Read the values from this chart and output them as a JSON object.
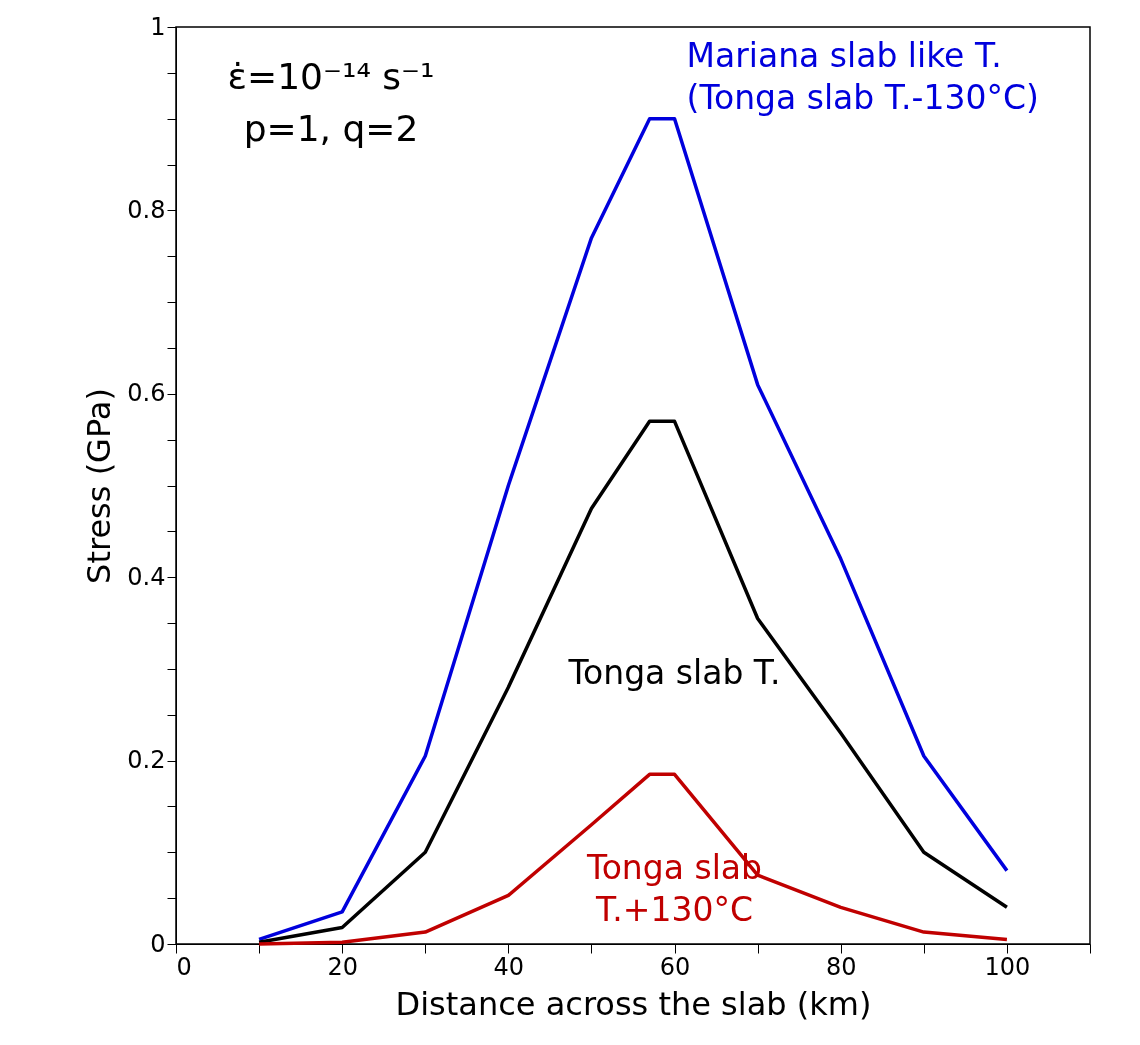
{
  "chart_data": {
    "type": "line",
    "xlabel": "Distance across the slab (km)",
    "ylabel": "Stress (GPa)",
    "x": [
      10,
      20,
      30,
      40,
      50,
      57,
      60,
      70,
      80,
      90,
      100
    ],
    "series": [
      {
        "name": "Mariana slab like T.\n(Tonga slab T.-130°C)",
        "color": "#0000dd",
        "values": [
          0.005,
          0.035,
          0.205,
          0.5,
          0.77,
          0.9,
          0.9,
          0.61,
          0.42,
          0.205,
          0.08
        ]
      },
      {
        "name": "Tonga slab T.",
        "color": "#000000",
        "values": [
          0.002,
          0.018,
          0.1,
          0.28,
          0.475,
          0.57,
          0.57,
          0.355,
          0.23,
          0.1,
          0.04
        ]
      },
      {
        "name": "Tonga slab\nT.+130°C",
        "color": "#c00000",
        "values": [
          0.0,
          0.002,
          0.013,
          0.053,
          0.13,
          0.185,
          0.185,
          0.075,
          0.04,
          0.013,
          0.005
        ]
      }
    ],
    "annotations": [
      "ε̇=10⁻¹⁴ s⁻¹",
      "p=1, q=2"
    ],
    "xlim": [
      0,
      110
    ],
    "xticks": [
      0,
      {
        "value": 10,
        "label": null
      },
      20,
      {
        "value": 30,
        "label": null
      },
      40,
      {
        "value": 50,
        "label": null
      },
      60,
      {
        "value": 70,
        "label": null
      },
      80,
      {
        "value": 90,
        "label": null
      },
      100,
      {
        "value": 110,
        "label": null
      }
    ],
    "ylim": [
      0,
      1
    ],
    "yticks": [
      0,
      {
        "value": 0.05,
        "label": null
      },
      {
        "value": 0.1,
        "label": null
      },
      {
        "value": 0.15,
        "label": null
      },
      0.2,
      {
        "value": 0.25,
        "label": null
      },
      {
        "value": 0.3,
        "label": null
      },
      {
        "value": 0.35,
        "label": null
      },
      0.4,
      {
        "value": 0.45,
        "label": null
      },
      {
        "value": 0.5,
        "label": null
      },
      {
        "value": 0.55,
        "label": null
      },
      0.6,
      {
        "value": 0.65,
        "label": null
      },
      {
        "value": 0.7,
        "label": null
      },
      {
        "value": 0.75,
        "label": null
      },
      0.8,
      {
        "value": 0.85,
        "label": null
      },
      {
        "value": 0.9,
        "label": null
      },
      {
        "value": 0.95,
        "label": null
      },
      1
    ],
    "marker": "none",
    "line_style": "solid"
  }
}
